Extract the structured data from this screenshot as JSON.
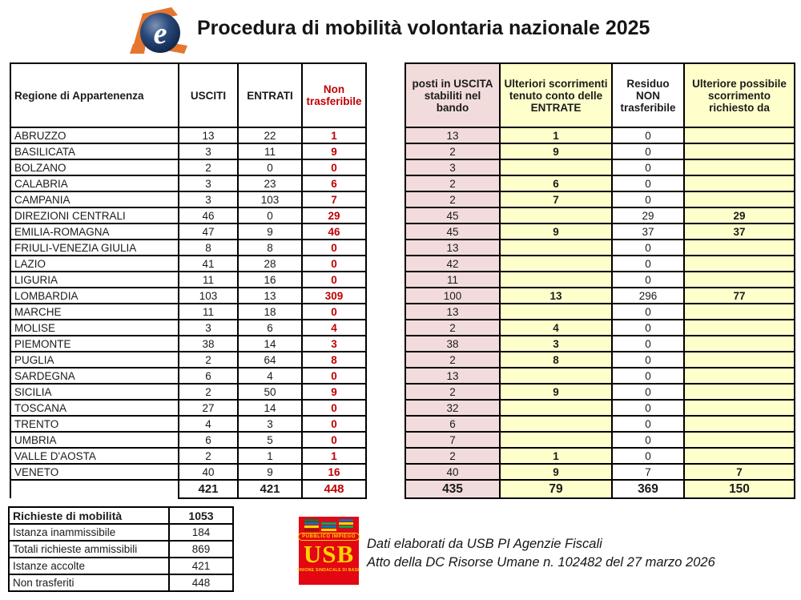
{
  "page": {
    "title": "Procedura di mobilità volontaria nazionale 2025"
  },
  "left_table": {
    "headers": [
      "Regione di Appartenenza",
      "USCITI",
      "ENTRATI",
      "Non trasferibile"
    ],
    "rows": [
      [
        "ABRUZZO",
        "13",
        "22",
        "1"
      ],
      [
        "BASILICATA",
        "3",
        "11",
        "9"
      ],
      [
        "BOLZANO",
        "2",
        "0",
        "0"
      ],
      [
        "CALABRIA",
        "3",
        "23",
        "6"
      ],
      [
        "CAMPANIA",
        "3",
        "103",
        "7"
      ],
      [
        "DIREZIONI CENTRALI",
        "46",
        "0",
        "29"
      ],
      [
        "EMILIA-ROMAGNA",
        "47",
        "9",
        "46"
      ],
      [
        "FRIULI-VENEZIA GIULIA",
        "8",
        "8",
        "0"
      ],
      [
        "LAZIO",
        "41",
        "28",
        "0"
      ],
      [
        "LIGURIA",
        "11",
        "16",
        "0"
      ],
      [
        "LOMBARDIA",
        "103",
        "13",
        "309"
      ],
      [
        "MARCHE",
        "11",
        "18",
        "0"
      ],
      [
        "MOLISE",
        "3",
        "6",
        "4"
      ],
      [
        "PIEMONTE",
        "38",
        "14",
        "3"
      ],
      [
        "PUGLIA",
        "2",
        "64",
        "8"
      ],
      [
        "SARDEGNA",
        "6",
        "4",
        "0"
      ],
      [
        "SICILIA",
        "2",
        "50",
        "9"
      ],
      [
        "TOSCANA",
        "27",
        "14",
        "0"
      ],
      [
        "TRENTO",
        "4",
        "3",
        "0"
      ],
      [
        "UMBRIA",
        "6",
        "5",
        "0"
      ],
      [
        "VALLE D'AOSTA",
        "2",
        "1",
        "1"
      ],
      [
        "VENETO",
        "40",
        "9",
        "16"
      ]
    ],
    "total_row": [
      [
        "",
        "421",
        "421",
        "448"
      ]
    ]
  },
  "right_table": {
    "headers": [
      "posti in USCITA stabiliti nel bando",
      "Ulteriori scorrimenti tenuto conto delle ENTRATE",
      "Residuo NON trasferibile",
      "Ulteriore possibile scorrimento richiesto da"
    ],
    "rows": [
      [
        "13",
        "1",
        "0",
        ""
      ],
      [
        "2",
        "9",
        "0",
        ""
      ],
      [
        "3",
        "",
        "0",
        ""
      ],
      [
        "2",
        "6",
        "0",
        ""
      ],
      [
        "2",
        "7",
        "0",
        ""
      ],
      [
        "45",
        "",
        "29",
        "29"
      ],
      [
        "45",
        "9",
        "37",
        "37"
      ],
      [
        "13",
        "",
        "0",
        ""
      ],
      [
        "42",
        "",
        "0",
        ""
      ],
      [
        "11",
        "",
        "0",
        ""
      ],
      [
        "100",
        "13",
        "296",
        "77"
      ],
      [
        "13",
        "",
        "0",
        ""
      ],
      [
        "2",
        "4",
        "0",
        ""
      ],
      [
        "38",
        "3",
        "0",
        ""
      ],
      [
        "2",
        "8",
        "0",
        ""
      ],
      [
        "13",
        "",
        "0",
        ""
      ],
      [
        "2",
        "9",
        "0",
        ""
      ],
      [
        "32",
        "",
        "0",
        ""
      ],
      [
        "6",
        "",
        "0",
        ""
      ],
      [
        "7",
        "",
        "0",
        ""
      ],
      [
        "2",
        "1",
        "0",
        ""
      ],
      [
        "40",
        "9",
        "7",
        "7"
      ]
    ],
    "total_row": [
      [
        "435",
        "79",
        "369",
        "150"
      ]
    ]
  },
  "summary_table": {
    "rows": [
      [
        "Richieste di mobilità",
        "1053"
      ],
      [
        "Istanza inammissibile",
        "184"
      ],
      [
        "Totali richieste ammissibili",
        "869"
      ],
      [
        "Istanze accolte",
        "421"
      ],
      [
        "Non trasferiti",
        "448"
      ]
    ]
  },
  "usb_logo": {
    "badge": "PUBBLICO IMPIEGO",
    "acronym": "USB",
    "subtitle": "UNIONE SINDACALE DI BASE"
  },
  "credits": {
    "line1": "Dati elaborati da USB PI Agenzie Fiscali",
    "line2": "Atto della DC Risorse Umane n. 102482 del 27 marzo 2026"
  },
  "colors": {
    "pink": "#F2DCDB",
    "yellow": "#FFFFCC",
    "red_text": "#C00000",
    "usb_red": "#E30613",
    "usb_yellow": "#FFD500",
    "logo_orange": "#E4762F",
    "logo_navy": "#1C3E6E"
  }
}
